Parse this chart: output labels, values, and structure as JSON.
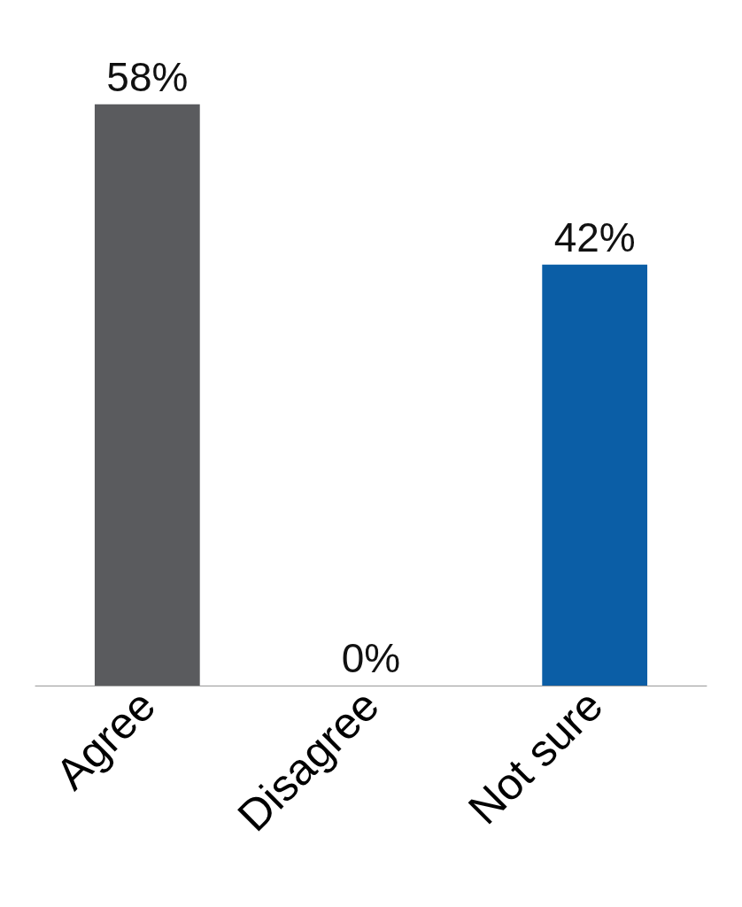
{
  "chart_data": {
    "type": "bar",
    "categories": [
      "Agree",
      "Disagree",
      "Not sure"
    ],
    "values": [
      58,
      0,
      42
    ],
    "value_labels": [
      "58%",
      "0%",
      "42%"
    ],
    "colors": [
      "#5a5b5e",
      "#1e9bd7",
      "#0b5ea6"
    ]
  }
}
